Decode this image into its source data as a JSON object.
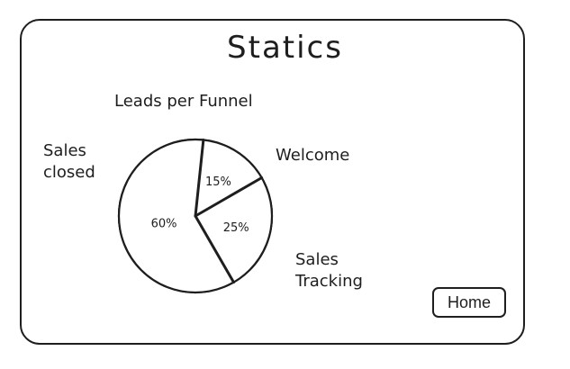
{
  "page": {
    "title": "Statics"
  },
  "chart_data": {
    "type": "pie",
    "title": "Leads per Funnel",
    "slices": [
      {
        "label": "Welcome",
        "value": 15,
        "value_label": "15%"
      },
      {
        "label": "Sales Tracking",
        "value": 25,
        "value_label": "25%"
      },
      {
        "label": "Sales closed",
        "value": 60,
        "value_label": "60%"
      }
    ]
  },
  "labels": {
    "sales_closed_line1": "Sales",
    "sales_closed_line2": "closed",
    "welcome": "Welcome",
    "sales_tracking_line1": "Sales",
    "sales_tracking_line2": "Tracking"
  },
  "nav": {
    "home_label": "Home"
  }
}
